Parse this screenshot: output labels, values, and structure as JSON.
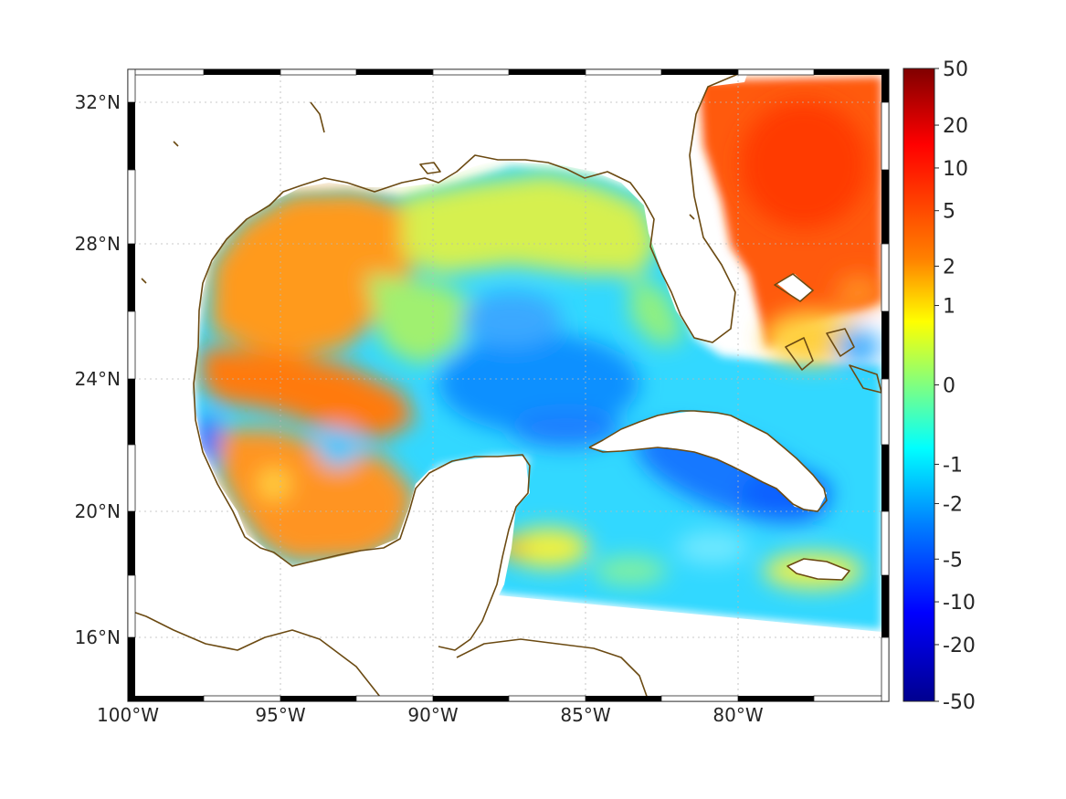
{
  "map": {
    "region": "Gulf of Mexico and western Caribbean",
    "projection": "equirectangular",
    "lon_range": [
      -100,
      -75
    ],
    "lat_range": [
      14,
      33
    ],
    "lon_ticks": [
      {
        "value": -100,
        "label": "100°W"
      },
      {
        "value": -95,
        "label": "95°W"
      },
      {
        "value": -90,
        "label": "90°W"
      },
      {
        "value": -85,
        "label": "85°W"
      },
      {
        "value": -80,
        "label": "80°W"
      }
    ],
    "lat_ticks": [
      {
        "value": 32,
        "label": "32°N"
      },
      {
        "value": 28,
        "label": "28°N"
      },
      {
        "value": 24,
        "label": "24°N"
      },
      {
        "value": 20,
        "label": "20°N"
      },
      {
        "value": 16,
        "label": "16°N"
      }
    ],
    "grid": true,
    "coastline_color": "#6b4a12",
    "frame": "black-and-white checkered border"
  },
  "colorbar": {
    "placement": "right",
    "scale": "symmetric log",
    "colormap": "jet",
    "colors": [
      "#00008f",
      "#0000ff",
      "#0080ff",
      "#00ffff",
      "#80ff80",
      "#ffff00",
      "#ff8000",
      "#ff0000",
      "#800000"
    ],
    "ticks": [
      {
        "value": 50,
        "label": "50"
      },
      {
        "value": 20,
        "label": "20"
      },
      {
        "value": 10,
        "label": "10"
      },
      {
        "value": 5,
        "label": "5"
      },
      {
        "value": 2,
        "label": "2"
      },
      {
        "value": 1,
        "label": "1"
      },
      {
        "value": 0,
        "label": "0"
      },
      {
        "value": -1,
        "label": "-1"
      },
      {
        "value": -2,
        "label": "-2"
      },
      {
        "value": -5,
        "label": "-5"
      },
      {
        "value": -10,
        "label": "-10"
      },
      {
        "value": -20,
        "label": "-20"
      },
      {
        "value": -50,
        "label": "-50"
      }
    ]
  },
  "field_regions": [
    {
      "name": "western-gulf-shelf",
      "value": 5
    },
    {
      "name": "central-gulf-basin",
      "value": -2
    },
    {
      "name": "atlantic-east-of-florida",
      "value": 10
    },
    {
      "name": "caribbean-south-of-cuba",
      "value": -5
    },
    {
      "name": "yucatan-channel",
      "value": -2
    },
    {
      "name": "northern-gulf-coast",
      "value": 1
    }
  ]
}
